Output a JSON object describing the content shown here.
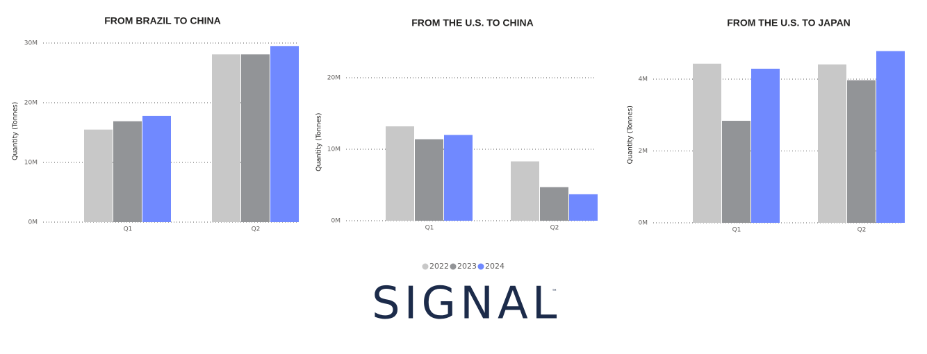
{
  "chart_data": [
    {
      "type": "bar",
      "title": "FROM BRAZIL TO CHINA",
      "y_label": "Quantity (Tonnes)",
      "categories": [
        "Q1",
        "Q2"
      ],
      "series": [
        {
          "values": [
            15500000,
            28100000
          ]
        },
        {
          "values": [
            16900000,
            28100000
          ]
        },
        {
          "values": [
            17800000,
            29500000
          ]
        }
      ],
      "ylim": [
        0,
        30500000
      ],
      "yticks": [
        {
          "value": 0,
          "label": "0M"
        },
        {
          "value": 10000000,
          "label": "10M"
        },
        {
          "value": 20000000,
          "label": "20M"
        },
        {
          "value": 30000000,
          "label": "30M"
        }
      ],
      "grid": true
    },
    {
      "type": "bar",
      "title": "FROM THE U.S. TO CHINA",
      "y_label": "Quantity (Tonnes)",
      "categories": [
        "Q1",
        "Q2"
      ],
      "series": [
        {
          "values": [
            13200000,
            8300000
          ]
        },
        {
          "values": [
            11400000,
            4700000
          ]
        },
        {
          "values": [
            12000000,
            3700000
          ]
        }
      ],
      "ylim": [
        0,
        22000000
      ],
      "yticks": [
        {
          "value": 0,
          "label": "0M"
        },
        {
          "value": 10000000,
          "label": "10M"
        },
        {
          "value": 20000000,
          "label": "20M"
        }
      ],
      "grid": true
    },
    {
      "type": "bar",
      "title": "FROM THE U.S. TO JAPAN",
      "y_label": "Quantity (Tonnes)",
      "categories": [
        "Q1",
        "Q2"
      ],
      "series": [
        {
          "values": [
            4430000,
            4410000
          ]
        },
        {
          "values": [
            2840000,
            3970000
          ]
        },
        {
          "values": [
            4290000,
            4780000
          ]
        }
      ],
      "ylim": [
        0,
        4900000
      ],
      "yticks": [
        {
          "value": 0,
          "label": "0M"
        },
        {
          "value": 2000000,
          "label": "2M"
        },
        {
          "value": 4000000,
          "label": "4M"
        }
      ],
      "grid": true
    }
  ],
  "legend": [
    {
      "name": "2022",
      "color": "#c8c8c8"
    },
    {
      "name": "2023",
      "color": "#929497"
    },
    {
      "name": "2024",
      "color": "#7089ff"
    }
  ],
  "logo": {
    "text": "SIGNAL",
    "mark": "™"
  }
}
